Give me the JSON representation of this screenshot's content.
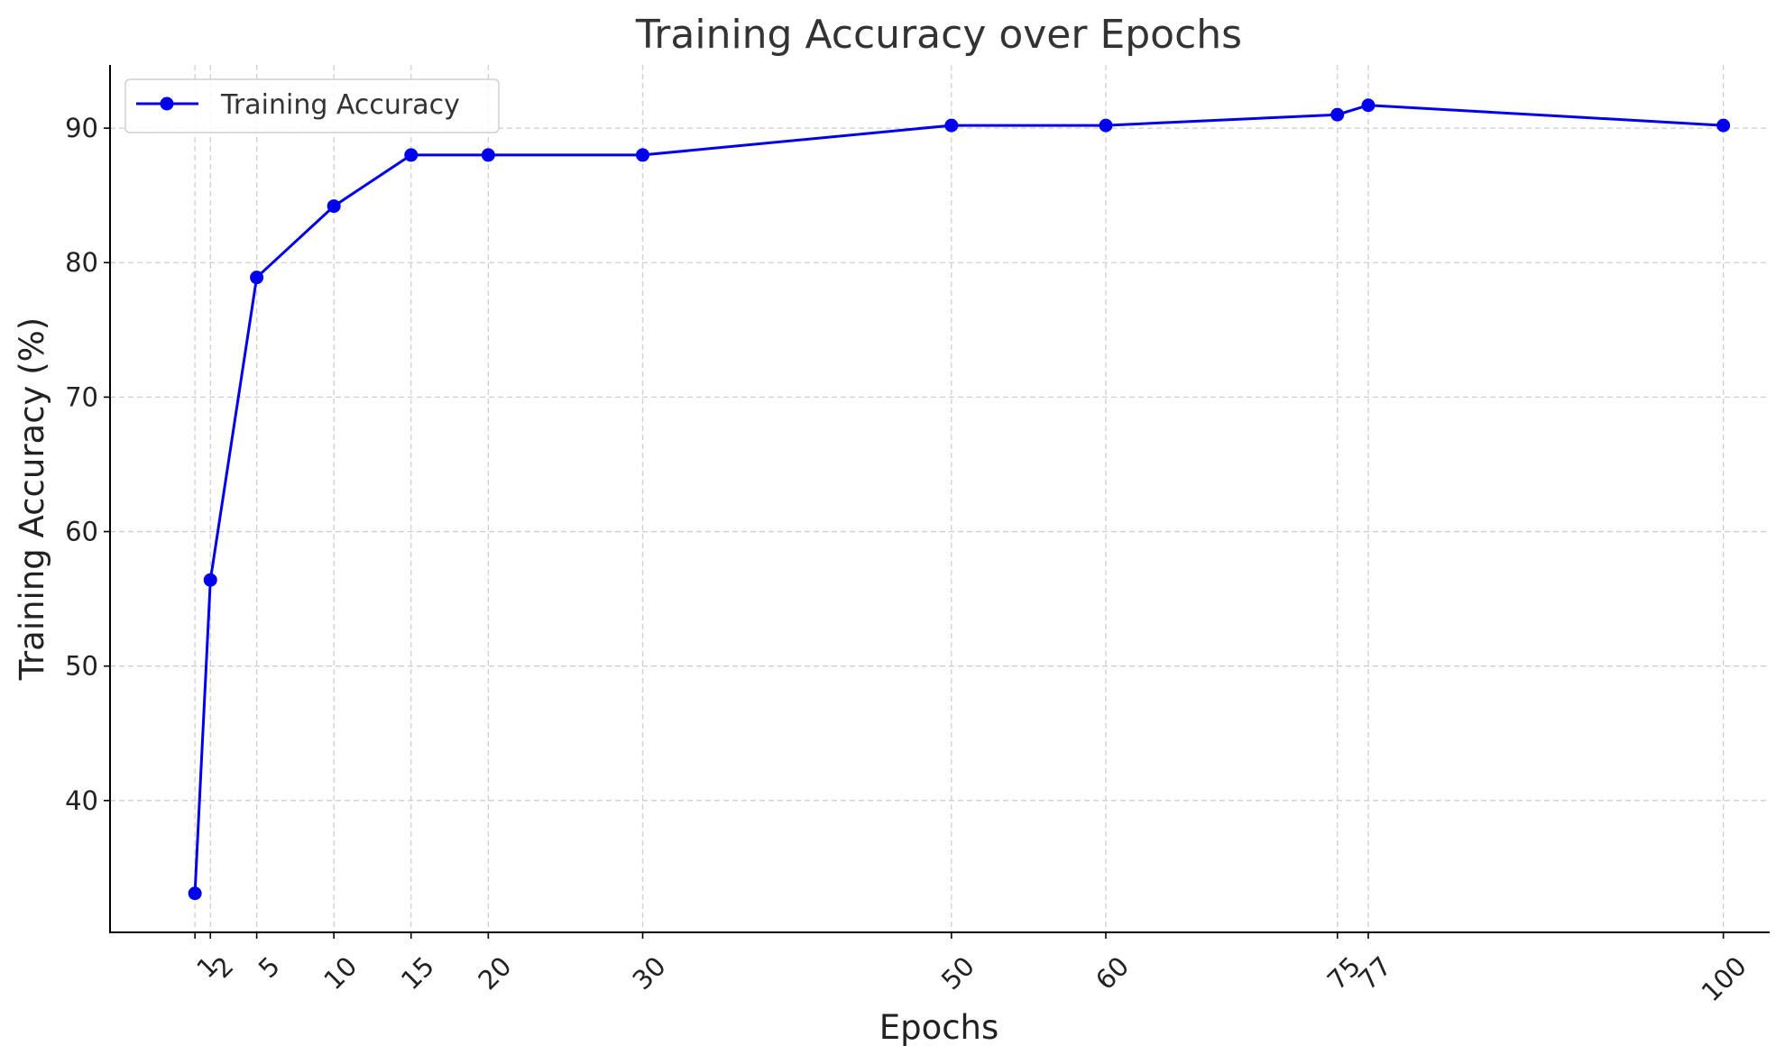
{
  "chart_data": {
    "type": "line",
    "title": "Training Accuracy over Epochs",
    "xlabel": "Epochs",
    "ylabel": "Training Accuracy (%)",
    "x": [
      1,
      2,
      5,
      10,
      15,
      20,
      30,
      50,
      60,
      75,
      77,
      100
    ],
    "x_ticks": [
      1,
      2,
      5,
      10,
      15,
      20,
      30,
      50,
      60,
      75,
      77,
      100
    ],
    "y_ticks": [
      40,
      50,
      60,
      70,
      80,
      90
    ],
    "xlim": [
      -4.5,
      103
    ],
    "ylim": [
      30.2,
      94.7
    ],
    "grid": true,
    "legend_position": "top-left",
    "series": [
      {
        "name": "Training Accuracy",
        "color": "#0000ee",
        "marker": "circle",
        "values": [
          33.1,
          56.4,
          78.9,
          84.2,
          88.0,
          88.0,
          88.0,
          90.2,
          90.2,
          91.0,
          91.7,
          90.2
        ]
      }
    ]
  }
}
